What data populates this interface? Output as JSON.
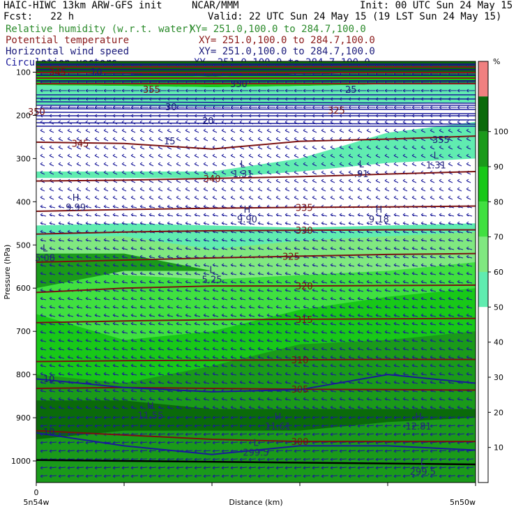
{
  "header": {
    "model": "HAIC-HIWC 13km ARW-GFS init",
    "center": "NCAR/MMM",
    "init": "Init: 00 UTC Sun 24 May 15",
    "fcst": "Fcst:   22 h",
    "valid": "Valid: 22 UTC Sun 24 May 15 (19 LST Sun 24 May 15)",
    "fields": [
      {
        "name": "Relative humidity (w.r.t. water)",
        "xy": "XY= 251.0,100.0 to 284.7,100.0",
        "color": "#2a8a2a"
      },
      {
        "name": "Potential temperature",
        "xy": "XY= 251.0,100.0 to 284.7,100.0",
        "color": "#8b1a1a"
      },
      {
        "name": "Horizontal wind speed",
        "xy": "XY= 251.0,100.0 to 284.7,100.0",
        "color": "#1a1a7a"
      },
      {
        "name": "Circulation vectors",
        "xy": "XY= 251.0,100.0 to 284.7,100.0",
        "color": "#1a1a9a"
      }
    ]
  },
  "chart_data": {
    "type": "heatmap",
    "xlabel": "Distance (km)",
    "ylabel": "Pressure (hPa)",
    "x_tick_labels": [
      "0"
    ],
    "x_end_labels": [
      "5n54w",
      "5n50w"
    ],
    "y_ticks": [
      100,
      200,
      300,
      400,
      500,
      600,
      700,
      800,
      900,
      1000
    ],
    "ylim": [
      1050,
      75
    ],
    "colorbar": {
      "unit": "%",
      "levels": [
        10,
        20,
        30,
        40,
        50,
        60,
        70,
        80,
        90,
        100
      ],
      "colors": [
        "#ffffff",
        "#ffffff",
        "#ffffff",
        "#ffffff",
        "#ffffff",
        "#60ecb0",
        "#80e880",
        "#40e040",
        "#18c818",
        "#1a9a1a",
        "#0a6a0a",
        "#f08080"
      ]
    },
    "rh_fill_colors": {
      "50": "#60ecb0",
      "60": "#80e880",
      "70": "#40e040",
      "80": "#18c818",
      "90": "#1a9a1a",
      "100": "#0a6a0a"
    },
    "theta_contours": [
      {
        "label": "345",
        "p": [
          262,
          265,
          278,
          260,
          255,
          248
        ]
      },
      {
        "label": "340",
        "p": [
          352,
          350,
          346,
          342,
          336,
          330
        ]
      },
      {
        "label": "335",
        "p": [
          422,
          418,
          415,
          413,
          412,
          410
        ]
      },
      {
        "label": "330",
        "p": [
          475,
          470,
          467,
          466,
          465,
          465
        ]
      },
      {
        "label": "325",
        "p": [
          540,
          535,
          530,
          526,
          522,
          520
        ]
      },
      {
        "label": "320",
        "p": [
          610,
          600,
          595,
          595,
          594,
          593
        ]
      },
      {
        "label": "315",
        "p": [
          680,
          676,
          673,
          672,
          671,
          670
        ]
      },
      {
        "label": "310",
        "p": [
          770,
          768,
          767,
          766,
          765,
          765
        ]
      },
      {
        "label": "305",
        "p": [
          832,
          830,
          832,
          834,
          835,
          836
        ]
      },
      {
        "label": "300",
        "p": [
          930,
          940,
          950,
          955,
          955,
          955
        ]
      }
    ],
    "wind_contours": [
      {
        "label": "10",
        "p": [
          810,
          830,
          840,
          835,
          800,
          820
        ]
      },
      {
        "label": "10",
        "p": [
          935,
          965,
          985,
          965,
          965,
          975
        ]
      }
    ],
    "extrema": [
      {
        "type": "H",
        "value": "9.99",
        "x": 0.09,
        "p": 398
      },
      {
        "type": "H",
        "value": "9.90",
        "x": 0.48,
        "p": 425
      },
      {
        "type": "H",
        "value": "9.18",
        "x": 0.78,
        "p": 425
      },
      {
        "type": "L",
        "value": "1.31",
        "x": 0.47,
        "p": 320
      },
      {
        "type": "L",
        "value": ".91",
        "x": 0.74,
        "p": 320
      },
      {
        "type": "L",
        "value": "1.31",
        "x": 0.91,
        "p": 300
      },
      {
        "type": "L",
        "value": "5.08",
        "x": 0.02,
        "p": 515
      },
      {
        "type": "L",
        "value": "5.25",
        "x": 0.4,
        "p": 565
      },
      {
        "type": "H",
        "value": "11.55",
        "x": 0.26,
        "p": 880
      },
      {
        "type": "H",
        "value": "11.61",
        "x": 0.55,
        "p": 905
      },
      {
        "type": "H",
        "value": "12.81",
        "x": 0.87,
        "p": 905
      },
      {
        "type": "L",
        "value": "299.5",
        "x": 0.5,
        "p": 965
      },
      {
        "type": "L",
        "value": "299.5",
        "x": 0.88,
        "p": 1010
      }
    ],
    "upper_labels": [
      "345",
      "350",
      "355",
      "325",
      "30",
      "25",
      "20",
      "15",
      "10",
      "350",
      "355"
    ]
  }
}
